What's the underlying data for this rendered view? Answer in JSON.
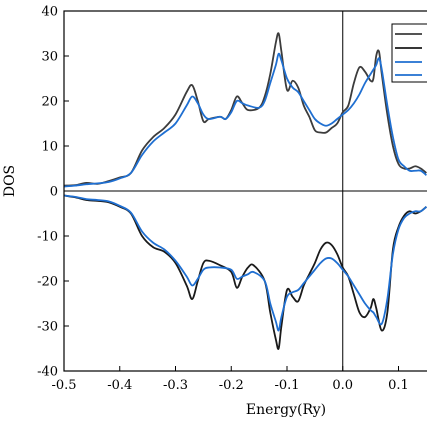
{
  "chart_data": {
    "type": "line",
    "xlabel": "Energy(Ry)",
    "ylabel": "DOS",
    "xlim": [
      -0.5,
      0.15
    ],
    "ylim": [
      -40,
      40
    ],
    "xticks": [
      "-0.5",
      "-0.4",
      "-0.3",
      "-0.2",
      "-0.1",
      "0.0",
      "0.1"
    ],
    "xtick_values": [
      -0.5,
      -0.4,
      -0.3,
      -0.2,
      -0.1,
      0.0,
      0.1
    ],
    "yticks": [
      "-40",
      "-30",
      "-20",
      "-10",
      "0",
      "10",
      "20",
      "30",
      "40"
    ],
    "ytick_values": [
      -40,
      -30,
      -20,
      -10,
      0,
      10,
      20,
      30,
      40
    ],
    "reference_lines": {
      "horizontal_y": 0,
      "vertical_x": 0.0
    },
    "legend": {
      "placement": "top-right",
      "entries_truncated": true
    },
    "series": [
      {
        "color": "#3c3c3c",
        "points": [
          [
            -0.5,
            1.2
          ],
          [
            -0.48,
            1.3
          ],
          [
            -0.46,
            1.8
          ],
          [
            -0.44,
            1.6
          ],
          [
            -0.42,
            2.2
          ],
          [
            -0.4,
            3
          ],
          [
            -0.38,
            4
          ],
          [
            -0.36,
            9
          ],
          [
            -0.34,
            12
          ],
          [
            -0.32,
            14
          ],
          [
            -0.3,
            17
          ],
          [
            -0.28,
            22
          ],
          [
            -0.27,
            23.5
          ],
          [
            -0.26,
            20
          ],
          [
            -0.25,
            15.5
          ],
          [
            -0.24,
            16
          ],
          [
            -0.22,
            16.5
          ],
          [
            -0.21,
            16
          ],
          [
            -0.2,
            18
          ],
          [
            -0.19,
            21
          ],
          [
            -0.18,
            19.5
          ],
          [
            -0.17,
            18
          ],
          [
            -0.15,
            18.5
          ],
          [
            -0.14,
            21
          ],
          [
            -0.13,
            26
          ],
          [
            -0.12,
            33
          ],
          [
            -0.115,
            35
          ],
          [
            -0.11,
            31
          ],
          [
            -0.1,
            22.5
          ],
          [
            -0.09,
            24.5
          ],
          [
            -0.08,
            23
          ],
          [
            -0.07,
            19
          ],
          [
            -0.06,
            16.5
          ],
          [
            -0.05,
            13.5
          ],
          [
            -0.04,
            13
          ],
          [
            -0.03,
            13
          ],
          [
            -0.02,
            14
          ],
          [
            -0.01,
            15
          ],
          [
            0.0,
            17.5
          ],
          [
            0.01,
            19
          ],
          [
            0.02,
            24
          ],
          [
            0.03,
            27.5
          ],
          [
            0.04,
            26.5
          ],
          [
            0.05,
            24.5
          ],
          [
            0.055,
            25
          ],
          [
            0.06,
            30
          ],
          [
            0.065,
            31
          ],
          [
            0.07,
            26
          ],
          [
            0.08,
            17
          ],
          [
            0.09,
            10
          ],
          [
            0.1,
            6
          ],
          [
            0.11,
            5
          ],
          [
            0.12,
            5
          ],
          [
            0.13,
            5.5
          ],
          [
            0.14,
            5
          ],
          [
            0.15,
            4
          ]
        ]
      },
      {
        "color": "#1a1a1a",
        "points": [
          [
            -0.5,
            -1
          ],
          [
            -0.48,
            -1.4
          ],
          [
            -0.46,
            -2
          ],
          [
            -0.44,
            -2.2
          ],
          [
            -0.42,
            -2.5
          ],
          [
            -0.4,
            -3.5
          ],
          [
            -0.38,
            -5
          ],
          [
            -0.36,
            -10
          ],
          [
            -0.34,
            -12.5
          ],
          [
            -0.32,
            -13.5
          ],
          [
            -0.3,
            -16
          ],
          [
            -0.28,
            -21
          ],
          [
            -0.27,
            -24
          ],
          [
            -0.26,
            -20
          ],
          [
            -0.25,
            -16
          ],
          [
            -0.24,
            -15.5
          ],
          [
            -0.22,
            -16.5
          ],
          [
            -0.2,
            -18
          ],
          [
            -0.19,
            -21.5
          ],
          [
            -0.18,
            -19
          ],
          [
            -0.17,
            -17
          ],
          [
            -0.16,
            -16.5
          ],
          [
            -0.14,
            -20
          ],
          [
            -0.13,
            -27
          ],
          [
            -0.12,
            -33
          ],
          [
            -0.115,
            -35
          ],
          [
            -0.11,
            -30
          ],
          [
            -0.1,
            -22
          ],
          [
            -0.09,
            -23.5
          ],
          [
            -0.08,
            -24.5
          ],
          [
            -0.07,
            -21
          ],
          [
            -0.06,
            -18.5
          ],
          [
            -0.05,
            -16
          ],
          [
            -0.04,
            -13
          ],
          [
            -0.03,
            -11.5
          ],
          [
            -0.02,
            -12
          ],
          [
            -0.01,
            -14
          ],
          [
            0.0,
            -17
          ],
          [
            0.01,
            -19
          ],
          [
            0.02,
            -23
          ],
          [
            0.03,
            -27
          ],
          [
            0.04,
            -28
          ],
          [
            0.05,
            -26
          ],
          [
            0.055,
            -24
          ],
          [
            0.06,
            -26
          ],
          [
            0.07,
            -31
          ],
          [
            0.08,
            -27
          ],
          [
            0.09,
            -13
          ],
          [
            0.1,
            -8
          ],
          [
            0.11,
            -5.5
          ],
          [
            0.12,
            -4.5
          ],
          [
            0.13,
            -5
          ],
          [
            0.14,
            -4.5
          ],
          [
            0.15,
            -3.5
          ]
        ]
      },
      {
        "color": "#1f6fd1",
        "points": [
          [
            -0.5,
            1
          ],
          [
            -0.48,
            1.2
          ],
          [
            -0.46,
            1.5
          ],
          [
            -0.44,
            1.7
          ],
          [
            -0.42,
            2
          ],
          [
            -0.4,
            2.8
          ],
          [
            -0.38,
            4
          ],
          [
            -0.36,
            8
          ],
          [
            -0.34,
            11
          ],
          [
            -0.32,
            13
          ],
          [
            -0.3,
            15
          ],
          [
            -0.28,
            19
          ],
          [
            -0.27,
            21
          ],
          [
            -0.26,
            19.5
          ],
          [
            -0.25,
            17
          ],
          [
            -0.24,
            16
          ],
          [
            -0.22,
            16.5
          ],
          [
            -0.21,
            16
          ],
          [
            -0.2,
            17.5
          ],
          [
            -0.19,
            20
          ],
          [
            -0.18,
            19.5
          ],
          [
            -0.17,
            19
          ],
          [
            -0.15,
            18.5
          ],
          [
            -0.14,
            20
          ],
          [
            -0.13,
            24
          ],
          [
            -0.12,
            28
          ],
          [
            -0.115,
            30.5
          ],
          [
            -0.11,
            29
          ],
          [
            -0.1,
            25
          ],
          [
            -0.09,
            23
          ],
          [
            -0.08,
            22
          ],
          [
            -0.07,
            20
          ],
          [
            -0.06,
            18
          ],
          [
            -0.05,
            16
          ],
          [
            -0.04,
            15
          ],
          [
            -0.03,
            14.5
          ],
          [
            -0.02,
            15
          ],
          [
            -0.01,
            16
          ],
          [
            0.0,
            17
          ],
          [
            0.01,
            18
          ],
          [
            0.02,
            19.5
          ],
          [
            0.03,
            21.5
          ],
          [
            0.04,
            24
          ],
          [
            0.05,
            26
          ],
          [
            0.055,
            27
          ],
          [
            0.06,
            28
          ],
          [
            0.065,
            29.5
          ],
          [
            0.07,
            27
          ],
          [
            0.08,
            19
          ],
          [
            0.09,
            12
          ],
          [
            0.1,
            7
          ],
          [
            0.11,
            5.5
          ],
          [
            0.12,
            4.5
          ],
          [
            0.13,
            4.5
          ],
          [
            0.14,
            4.5
          ],
          [
            0.15,
            3.5
          ]
        ]
      },
      {
        "color": "#1f6fd1",
        "points": [
          [
            -0.5,
            -1
          ],
          [
            -0.48,
            -1.3
          ],
          [
            -0.46,
            -1.8
          ],
          [
            -0.44,
            -2
          ],
          [
            -0.42,
            -2.3
          ],
          [
            -0.4,
            -3.3
          ],
          [
            -0.38,
            -4.8
          ],
          [
            -0.36,
            -9
          ],
          [
            -0.34,
            -11.5
          ],
          [
            -0.32,
            -13
          ],
          [
            -0.3,
            -15.5
          ],
          [
            -0.28,
            -19
          ],
          [
            -0.27,
            -21
          ],
          [
            -0.26,
            -19.5
          ],
          [
            -0.25,
            -17.5
          ],
          [
            -0.24,
            -17
          ],
          [
            -0.22,
            -17
          ],
          [
            -0.2,
            -17.5
          ],
          [
            -0.19,
            -19.5
          ],
          [
            -0.18,
            -19
          ],
          [
            -0.17,
            -18.5
          ],
          [
            -0.16,
            -18
          ],
          [
            -0.14,
            -20
          ],
          [
            -0.13,
            -25
          ],
          [
            -0.12,
            -29
          ],
          [
            -0.115,
            -31
          ],
          [
            -0.11,
            -28
          ],
          [
            -0.1,
            -23.5
          ],
          [
            -0.09,
            -22.5
          ],
          [
            -0.08,
            -22
          ],
          [
            -0.07,
            -20.5
          ],
          [
            -0.06,
            -19
          ],
          [
            -0.05,
            -17.5
          ],
          [
            -0.04,
            -16
          ],
          [
            -0.03,
            -15
          ],
          [
            -0.02,
            -15
          ],
          [
            -0.01,
            -16
          ],
          [
            0.0,
            -17.5
          ],
          [
            0.01,
            -19
          ],
          [
            0.02,
            -21
          ],
          [
            0.03,
            -23
          ],
          [
            0.04,
            -25
          ],
          [
            0.05,
            -26.5
          ],
          [
            0.055,
            -27
          ],
          [
            0.06,
            -28
          ],
          [
            0.07,
            -29.5
          ],
          [
            0.08,
            -24
          ],
          [
            0.09,
            -14
          ],
          [
            0.1,
            -8.5
          ],
          [
            0.11,
            -6
          ],
          [
            0.12,
            -5
          ],
          [
            0.13,
            -4.5
          ],
          [
            0.14,
            -4.5
          ],
          [
            0.15,
            -3.5
          ]
        ]
      }
    ]
  }
}
